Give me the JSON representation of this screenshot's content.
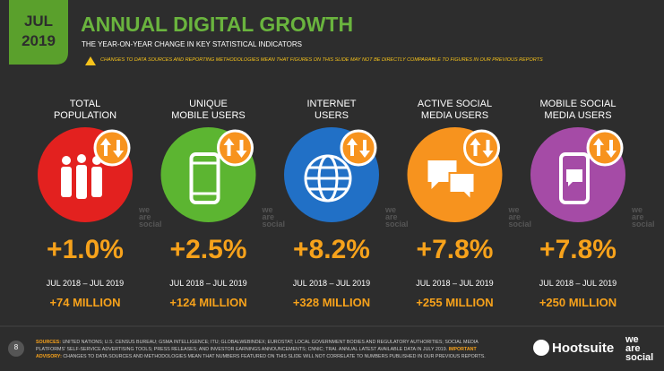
{
  "header": {
    "month": "JUL",
    "year": "2019",
    "title": "ANNUAL DIGITAL GROWTH",
    "subtitle": "THE YEAR-ON-YEAR CHANGE IN KEY STATISTICAL INDICATORS",
    "warning": "CHANGES TO DATA SOURCES AND REPORTING METHODOLOGIES MEAN THAT FIGURES ON THIS SLIDE MAY NOT BE DIRECTLY COMPARABLE TO FIGURES IN OUR PREVIOUS REPORTS"
  },
  "items": [
    {
      "label": "TOTAL\nPOPULATION",
      "color": "#e3211f",
      "change": "+1.0%",
      "period": "JUL 2018 – JUL 2019",
      "absolute": "+74 MILLION"
    },
    {
      "label": "UNIQUE\nMOBILE USERS",
      "color": "#5cb531",
      "change": "+2.5%",
      "period": "JUL 2018 – JUL 2019",
      "absolute": "+124 MILLION"
    },
    {
      "label": "INTERNET\nUSERS",
      "color": "#2170c6",
      "change": "+8.2%",
      "period": "JUL 2018 – JUL 2019",
      "absolute": "+328 MILLION"
    },
    {
      "label": "ACTIVE SOCIAL\nMEDIA USERS",
      "color": "#f7931e",
      "change": "+7.8%",
      "period": "JUL 2018 – JUL 2019",
      "absolute": "+255 MILLION"
    },
    {
      "label": "MOBILE SOCIAL\nMEDIA USERS",
      "color": "#a54ba6",
      "change": "+7.8%",
      "period": "JUL 2018 – JUL 2019",
      "absolute": "+250 MILLION"
    }
  ],
  "watermark": "we\nare\nsocial",
  "footer": {
    "page": "8",
    "sources_label": "SOURCES:",
    "sources": "UNITED NATIONS; U.S. CENSUS BUREAU; GSMA INTELLIGENCE; ITU; GLOBALWEBINDEX; EUROSTAT; LOCAL GOVERNMENT BODIES AND REGULATORY AUTHORITIES; SOCIAL MEDIA PLATFORMS' SELF-SERVICE ADVERTISING TOOLS; PRESS RELEASES; AND INVESTOR EARNINGS ANNOUNCEMENTS; CNNIC; TRAI. ANNUAL LATEST AVAILABLE DATA IN JULY 2019.",
    "advisory_label": "IMPORTANT ADVISORY:",
    "advisory": "CHANGES TO DATA SOURCES AND METHODOLOGIES MEAN THAT NUMBERS FEATURED ON THIS SLIDE WILL NOT CORRELATE TO NUMBERS PUBLISHED IN OUR PREVIOUS REPORTS.",
    "brand": "Hootsuite",
    "partner": "we\nare\nsocial"
  }
}
